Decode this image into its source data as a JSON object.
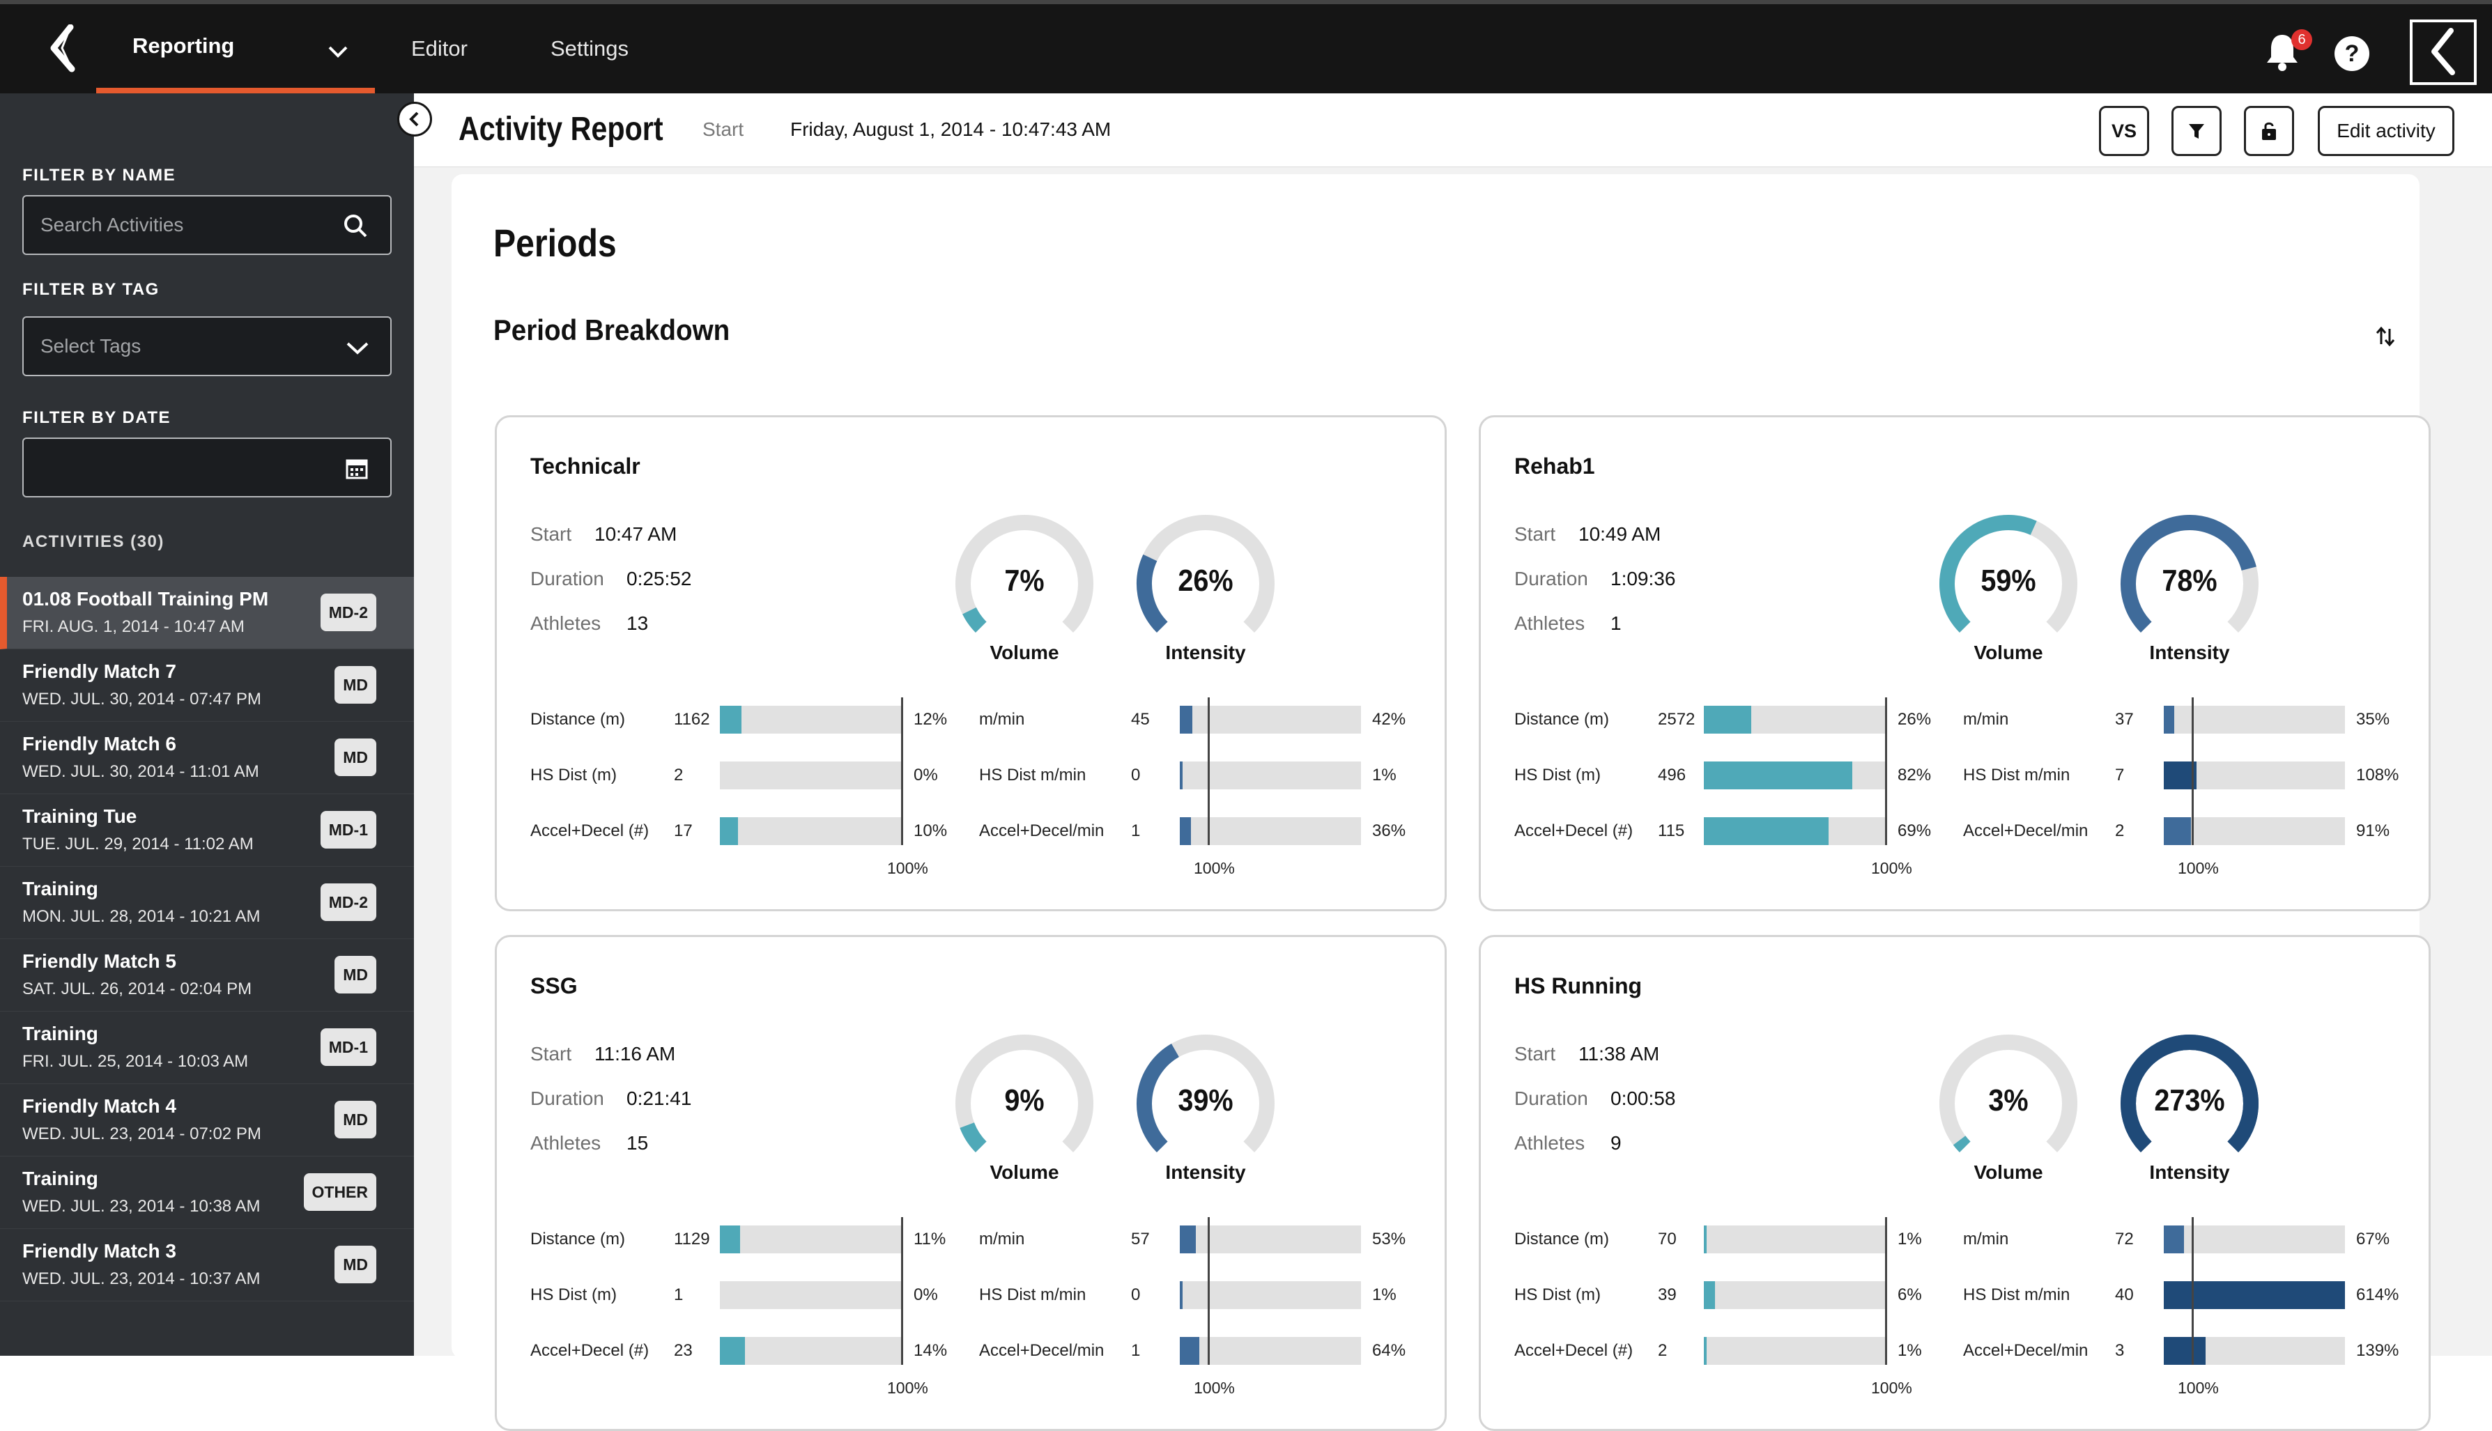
{
  "nav": {
    "reporting": "Reporting",
    "editor": "Editor",
    "settings": "Settings",
    "notifications_count": "6",
    "help": "?"
  },
  "sidebar": {
    "filter_name_label": "FILTER BY NAME",
    "search_placeholder": "Search Activities",
    "filter_tag_label": "FILTER BY TAG",
    "tag_placeholder": "Select Tags",
    "filter_date_label": "FILTER BY DATE",
    "activities_label": "ACTIVITIES (30)",
    "activities": [
      {
        "title": "01.08 Football Training PM",
        "date": "FRI. AUG. 1, 2014 - 10:47 AM",
        "tag": "MD-2",
        "selected": true
      },
      {
        "title": "Friendly Match 7",
        "date": "WED. JUL. 30, 2014 - 07:47 PM",
        "tag": "MD"
      },
      {
        "title": "Friendly Match 6",
        "date": "WED. JUL. 30, 2014 - 11:01 AM",
        "tag": "MD"
      },
      {
        "title": "Training Tue",
        "date": "TUE. JUL. 29, 2014 - 11:02 AM",
        "tag": "MD-1"
      },
      {
        "title": "Training",
        "date": "MON. JUL. 28, 2014 - 10:21 AM",
        "tag": "MD-2"
      },
      {
        "title": "Friendly Match 5",
        "date": "SAT. JUL. 26, 2014 - 02:04 PM",
        "tag": "MD"
      },
      {
        "title": "Training",
        "date": "FRI. JUL. 25, 2014 - 10:03 AM",
        "tag": "MD-1"
      },
      {
        "title": "Friendly Match 4",
        "date": "WED. JUL. 23, 2014 - 07:02 PM",
        "tag": "MD"
      },
      {
        "title": "Training",
        "date": "WED. JUL. 23, 2014 - 10:38 AM",
        "tag": "OTHER"
      },
      {
        "title": "Friendly Match 3",
        "date": "WED. JUL. 23, 2014 - 10:37 AM",
        "tag": "MD"
      }
    ]
  },
  "header": {
    "title": "Activity Report",
    "start_label": "Start",
    "start_value": "Friday, August 1, 2014 - 10:47:43 AM",
    "vs_label": "VS",
    "edit_label": "Edit activity"
  },
  "main": {
    "periods_title": "Periods",
    "breakdown_title": "Period Breakdown"
  },
  "colors": {
    "volume": "#4fa9b8",
    "intensity": "#3f6b9a",
    "intensity_dark": "#1f4a78",
    "accent": "#e55a2e"
  },
  "periods": [
    {
      "name": "Technicalr",
      "start_label": "Start",
      "start": "10:47 AM",
      "duration_label": "Duration",
      "duration": "0:25:52",
      "athletes_label": "Athletes",
      "athletes": "13",
      "volume_pct": 7,
      "volume_text": "7%",
      "volume_label": "Volume",
      "intensity_pct": 26,
      "intensity_text": "26%",
      "intensity_label": "Intensity",
      "ref_label": "100%",
      "left_metrics": [
        {
          "label": "Distance (m)",
          "value": "1162",
          "pct": 12,
          "pct_text": "12%"
        },
        {
          "label": "HS Dist (m)",
          "value": "2",
          "pct": 0,
          "pct_text": "0%"
        },
        {
          "label": "Accel+Decel (#)",
          "value": "17",
          "pct": 10,
          "pct_text": "10%"
        }
      ],
      "right_metrics": [
        {
          "label": "m/min",
          "value": "45",
          "pct": 42,
          "pct_text": "42%"
        },
        {
          "label": "HS Dist m/min",
          "value": "0",
          "pct": 1,
          "pct_text": "1%"
        },
        {
          "label": "Accel+Decel/min",
          "value": "1",
          "pct": 36,
          "pct_text": "36%"
        }
      ]
    },
    {
      "name": "Rehab1",
      "start_label": "Start",
      "start": "10:49 AM",
      "duration_label": "Duration",
      "duration": "1:09:36",
      "athletes_label": "Athletes",
      "athletes": "1",
      "volume_pct": 59,
      "volume_text": "59%",
      "volume_label": "Volume",
      "intensity_pct": 78,
      "intensity_text": "78%",
      "intensity_label": "Intensity",
      "ref_label": "100%",
      "left_metrics": [
        {
          "label": "Distance (m)",
          "value": "2572",
          "pct": 26,
          "pct_text": "26%"
        },
        {
          "label": "HS Dist (m)",
          "value": "496",
          "pct": 82,
          "pct_text": "82%"
        },
        {
          "label": "Accel+Decel (#)",
          "value": "115",
          "pct": 69,
          "pct_text": "69%"
        }
      ],
      "right_metrics": [
        {
          "label": "m/min",
          "value": "37",
          "pct": 35,
          "pct_text": "35%"
        },
        {
          "label": "HS Dist m/min",
          "value": "7",
          "pct": 108,
          "pct_text": "108%"
        },
        {
          "label": "Accel+Decel/min",
          "value": "2",
          "pct": 91,
          "pct_text": "91%"
        }
      ]
    },
    {
      "name": "SSG",
      "start_label": "Start",
      "start": "11:16 AM",
      "duration_label": "Duration",
      "duration": "0:21:41",
      "athletes_label": "Athletes",
      "athletes": "15",
      "volume_pct": 9,
      "volume_text": "9%",
      "volume_label": "Volume",
      "intensity_pct": 39,
      "intensity_text": "39%",
      "intensity_label": "Intensity",
      "ref_label": "100%",
      "left_metrics": [
        {
          "label": "Distance (m)",
          "value": "1129",
          "pct": 11,
          "pct_text": "11%"
        },
        {
          "label": "HS Dist (m)",
          "value": "1",
          "pct": 0,
          "pct_text": "0%"
        },
        {
          "label": "Accel+Decel (#)",
          "value": "23",
          "pct": 14,
          "pct_text": "14%"
        }
      ],
      "right_metrics": [
        {
          "label": "m/min",
          "value": "57",
          "pct": 53,
          "pct_text": "53%"
        },
        {
          "label": "HS Dist m/min",
          "value": "0",
          "pct": 1,
          "pct_text": "1%"
        },
        {
          "label": "Accel+Decel/min",
          "value": "1",
          "pct": 64,
          "pct_text": "64%"
        }
      ]
    },
    {
      "name": "HS Running",
      "start_label": "Start",
      "start": "11:38 AM",
      "duration_label": "Duration",
      "duration": "0:00:58",
      "athletes_label": "Athletes",
      "athletes": "9",
      "volume_pct": 3,
      "volume_text": "3%",
      "volume_label": "Volume",
      "intensity_pct": 273,
      "intensity_text": "273%",
      "intensity_label": "Intensity",
      "ref_label": "100%",
      "left_metrics": [
        {
          "label": "Distance (m)",
          "value": "70",
          "pct": 1,
          "pct_text": "1%"
        },
        {
          "label": "HS Dist (m)",
          "value": "39",
          "pct": 6,
          "pct_text": "6%"
        },
        {
          "label": "Accel+Decel (#)",
          "value": "2",
          "pct": 1,
          "pct_text": "1%"
        }
      ],
      "right_metrics": [
        {
          "label": "m/min",
          "value": "72",
          "pct": 67,
          "pct_text": "67%"
        },
        {
          "label": "HS Dist m/min",
          "value": "40",
          "pct": 614,
          "pct_text": "614%"
        },
        {
          "label": "Accel+Decel/min",
          "value": "3",
          "pct": 139,
          "pct_text": "139%"
        }
      ]
    }
  ]
}
